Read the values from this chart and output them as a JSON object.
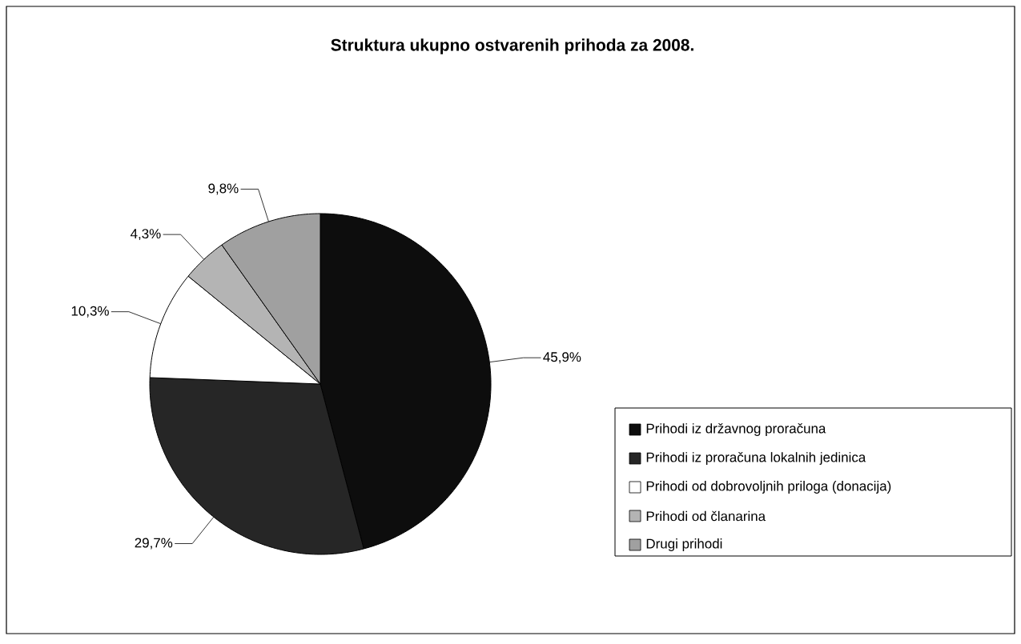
{
  "chart_data": {
    "type": "pie",
    "title": "Struktura ukupno ostvarenih prihoda za 2008.",
    "categories": [
      "Prihodi iz državnog proračuna",
      "Prihodi iz proračuna lokalnih jedinica",
      "Prihodi od dobrovoljnih priloga (donacija)",
      "Prihodi od članarina",
      "Drugi prihodi"
    ],
    "values": [
      45.9,
      29.7,
      10.3,
      4.3,
      9.8
    ],
    "value_labels": [
      "45,9%",
      "29,7%",
      "10,3%",
      "4,3%",
      "9,8%"
    ],
    "colors": [
      "#0d0d0d",
      "#262626",
      "#ffffff",
      "#b4b4b4",
      "#a0a0a0"
    ],
    "legend": "right"
  }
}
